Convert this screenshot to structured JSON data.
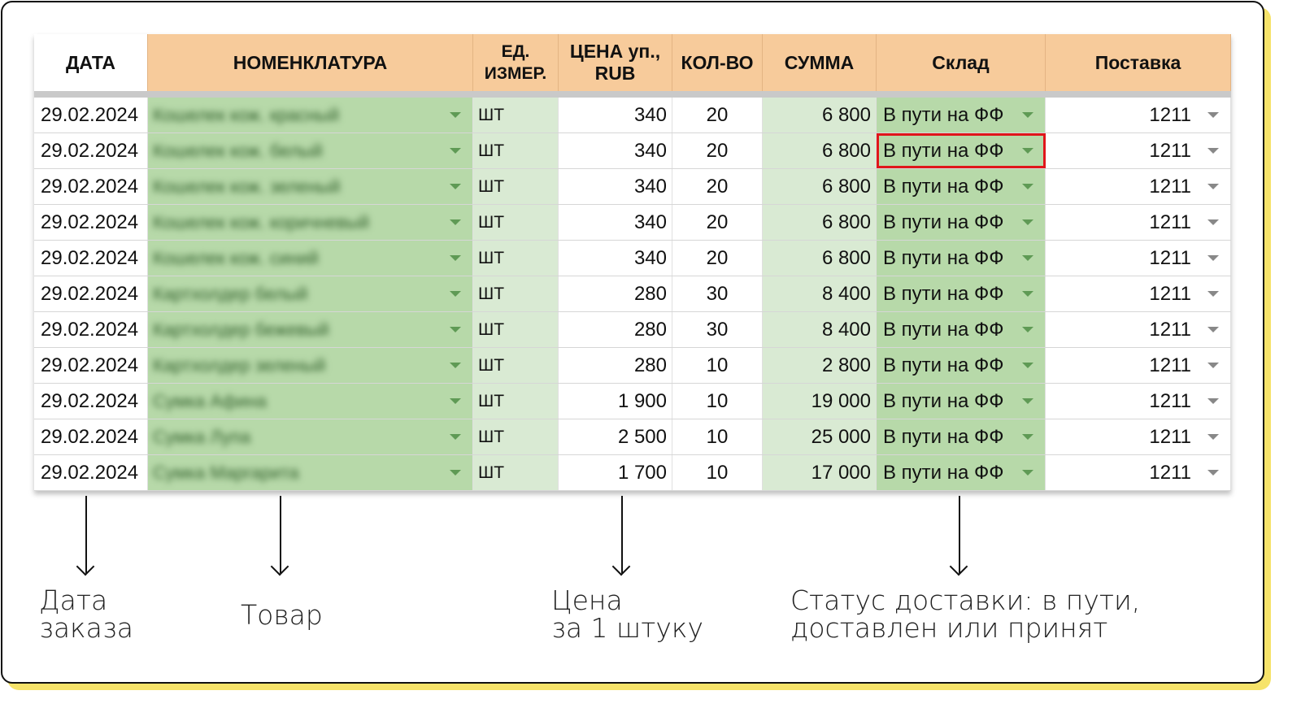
{
  "headers": [
    "ДАТА",
    "НОМЕНКЛАТУРА",
    "ЕД.\nИЗМЕР.",
    "ЦЕНА уп.,\nRUB",
    "КОЛ-ВО",
    "СУММА",
    "Склад",
    "Поставка"
  ],
  "rows": [
    {
      "date": "29.02.2024",
      "name": "Кошелек кож. красный",
      "unit": "ШТ",
      "price": "340",
      "qty": "20",
      "sum": "6 800",
      "warehouse": "В пути на ФФ",
      "delivery": "1211"
    },
    {
      "date": "29.02.2024",
      "name": "Кошелек кож. белый",
      "unit": "ШТ",
      "price": "340",
      "qty": "20",
      "sum": "6 800",
      "warehouse": "В пути на ФФ",
      "delivery": "1211",
      "highlighted": true
    },
    {
      "date": "29.02.2024",
      "name": "Кошелек кож. зеленый",
      "unit": "ШТ",
      "price": "340",
      "qty": "20",
      "sum": "6 800",
      "warehouse": "В пути на ФФ",
      "delivery": "1211"
    },
    {
      "date": "29.02.2024",
      "name": "Кошелек кож. коричневый",
      "unit": "ШТ",
      "price": "340",
      "qty": "20",
      "sum": "6 800",
      "warehouse": "В пути на ФФ",
      "delivery": "1211"
    },
    {
      "date": "29.02.2024",
      "name": "Кошелек кож. синий",
      "unit": "ШТ",
      "price": "340",
      "qty": "20",
      "sum": "6 800",
      "warehouse": "В пути на ФФ",
      "delivery": "1211"
    },
    {
      "date": "29.02.2024",
      "name": "Картхолдер белый",
      "unit": "ШТ",
      "price": "280",
      "qty": "30",
      "sum": "8 400",
      "warehouse": "В пути на ФФ",
      "delivery": "1211"
    },
    {
      "date": "29.02.2024",
      "name": "Картхолдер бежевый",
      "unit": "ШТ",
      "price": "280",
      "qty": "30",
      "sum": "8 400",
      "warehouse": "В пути на ФФ",
      "delivery": "1211"
    },
    {
      "date": "29.02.2024",
      "name": "Картхолдер зеленый",
      "unit": "ШТ",
      "price": "280",
      "qty": "10",
      "sum": "2 800",
      "warehouse": "В пути на ФФ",
      "delivery": "1211"
    },
    {
      "date": "29.02.2024",
      "name": "Сумка Афина",
      "unit": "ШТ",
      "price": "1 900",
      "qty": "10",
      "sum": "19 000",
      "warehouse": "В пути на ФФ",
      "delivery": "1211"
    },
    {
      "date": "29.02.2024",
      "name": "Сумка Лупа",
      "unit": "ШТ",
      "price": "2 500",
      "qty": "10",
      "sum": "25 000",
      "warehouse": "В пути на ФФ",
      "delivery": "1211"
    },
    {
      "date": "29.02.2024",
      "name": "Сумка Маргарита",
      "unit": "ШТ",
      "price": "1 700",
      "qty": "10",
      "sum": "17 000",
      "warehouse": "В пути на ФФ",
      "delivery": "1211"
    }
  ],
  "notes": {
    "date": "Дата\nзаказа",
    "product": "Товар",
    "price": "Цена\nза 1 штуку",
    "status": "Статус доставки: в пути,\nдоставлен или принят"
  },
  "colors": {
    "header": "#f7cb9b",
    "green": "#b7d9a9",
    "light_green": "#d9ead3",
    "highlight": "#e0161b",
    "card_shadow": "#f6e36a"
  }
}
